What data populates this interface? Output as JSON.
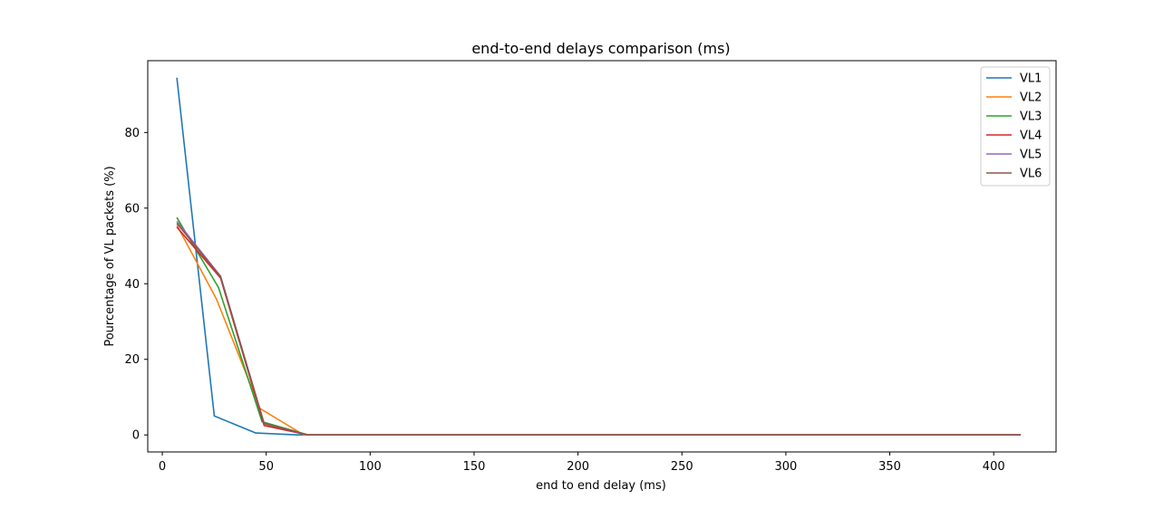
{
  "chart_data": {
    "type": "line",
    "title": "end-to-end delays comparison (ms)",
    "xlabel": "end to end delay (ms)",
    "ylabel": "Pourcentage of VL packets (%)",
    "xlim": [
      -7,
      430
    ],
    "ylim": [
      -4.5,
      99
    ],
    "xticks": [
      0,
      50,
      100,
      150,
      200,
      250,
      300,
      350,
      400
    ],
    "yticks": [
      0,
      20,
      40,
      60,
      80
    ],
    "grid": false,
    "legend_position": "top-right",
    "series": [
      {
        "name": "VL1",
        "color": "#1f77b4",
        "x": [
          7,
          25,
          45,
          65,
          413
        ],
        "y": [
          94.5,
          5.0,
          0.5,
          0.0,
          0.0
        ]
      },
      {
        "name": "VL2",
        "color": "#ff7f0e",
        "x": [
          7,
          26,
          47,
          68,
          413
        ],
        "y": [
          55.5,
          36.0,
          7.0,
          0.0,
          0.0
        ]
      },
      {
        "name": "VL3",
        "color": "#2ca02c",
        "x": [
          7,
          27,
          48,
          70,
          413
        ],
        "y": [
          57.5,
          39.0,
          3.5,
          0.0,
          0.0
        ]
      },
      {
        "name": "VL4",
        "color": "#d62728",
        "x": [
          7,
          28,
          49,
          70,
          413
        ],
        "y": [
          55.0,
          41.5,
          2.5,
          0.0,
          0.0
        ]
      },
      {
        "name": "VL5",
        "color": "#9467bd",
        "x": [
          7,
          28,
          49,
          70,
          413
        ],
        "y": [
          56.5,
          42.0,
          3.0,
          0.0,
          0.0
        ]
      },
      {
        "name": "VL6",
        "color": "#8c564b",
        "x": [
          7,
          28,
          49,
          70,
          413
        ],
        "y": [
          56.0,
          41.8,
          3.0,
          0.0,
          0.0
        ]
      }
    ]
  }
}
